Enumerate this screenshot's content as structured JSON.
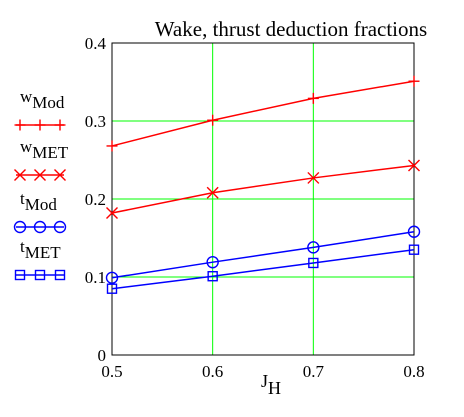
{
  "chart_data": {
    "type": "line",
    "title": "Wake, thrust deduction fractions",
    "xlabel": {
      "main": "J",
      "sub": "H"
    },
    "ylabel": "",
    "xlim": [
      0.5,
      0.8
    ],
    "ylim": [
      0,
      0.4
    ],
    "xticks": [
      0.5,
      0.6,
      0.7,
      0.8
    ],
    "xtick_labels": [
      "0.5",
      "0.6",
      "0.7",
      "0.8"
    ],
    "yticks": [
      0,
      0.1,
      0.2,
      0.3,
      0.4
    ],
    "ytick_labels": [
      "0",
      "0.1",
      "0.2",
      "0.3",
      "0.4"
    ],
    "grid": true,
    "legend_position": "left",
    "x": [
      0.5,
      0.6,
      0.7,
      0.8
    ],
    "series": [
      {
        "name": "wMod",
        "label_main": "w",
        "label_sub": "Mod",
        "marker": "plus",
        "color": "#ff0000",
        "values": [
          0.268,
          0.301,
          0.329,
          0.351
        ]
      },
      {
        "name": "wMET",
        "label_main": "w",
        "label_sub": "MET",
        "marker": "x",
        "color": "#ff0000",
        "values": [
          0.182,
          0.208,
          0.227,
          0.243
        ]
      },
      {
        "name": "tMod",
        "label_main": "t",
        "label_sub": "Mod",
        "marker": "circle",
        "color": "#0000ff",
        "values": [
          0.099,
          0.119,
          0.138,
          0.158
        ]
      },
      {
        "name": "tMET",
        "label_main": "t",
        "label_sub": "MET",
        "marker": "square",
        "color": "#0000ff",
        "values": [
          0.085,
          0.101,
          0.118,
          0.135
        ]
      }
    ]
  },
  "colors": {
    "grid": "#00ff00",
    "axis": "#000000",
    "background": "#ffffff"
  }
}
